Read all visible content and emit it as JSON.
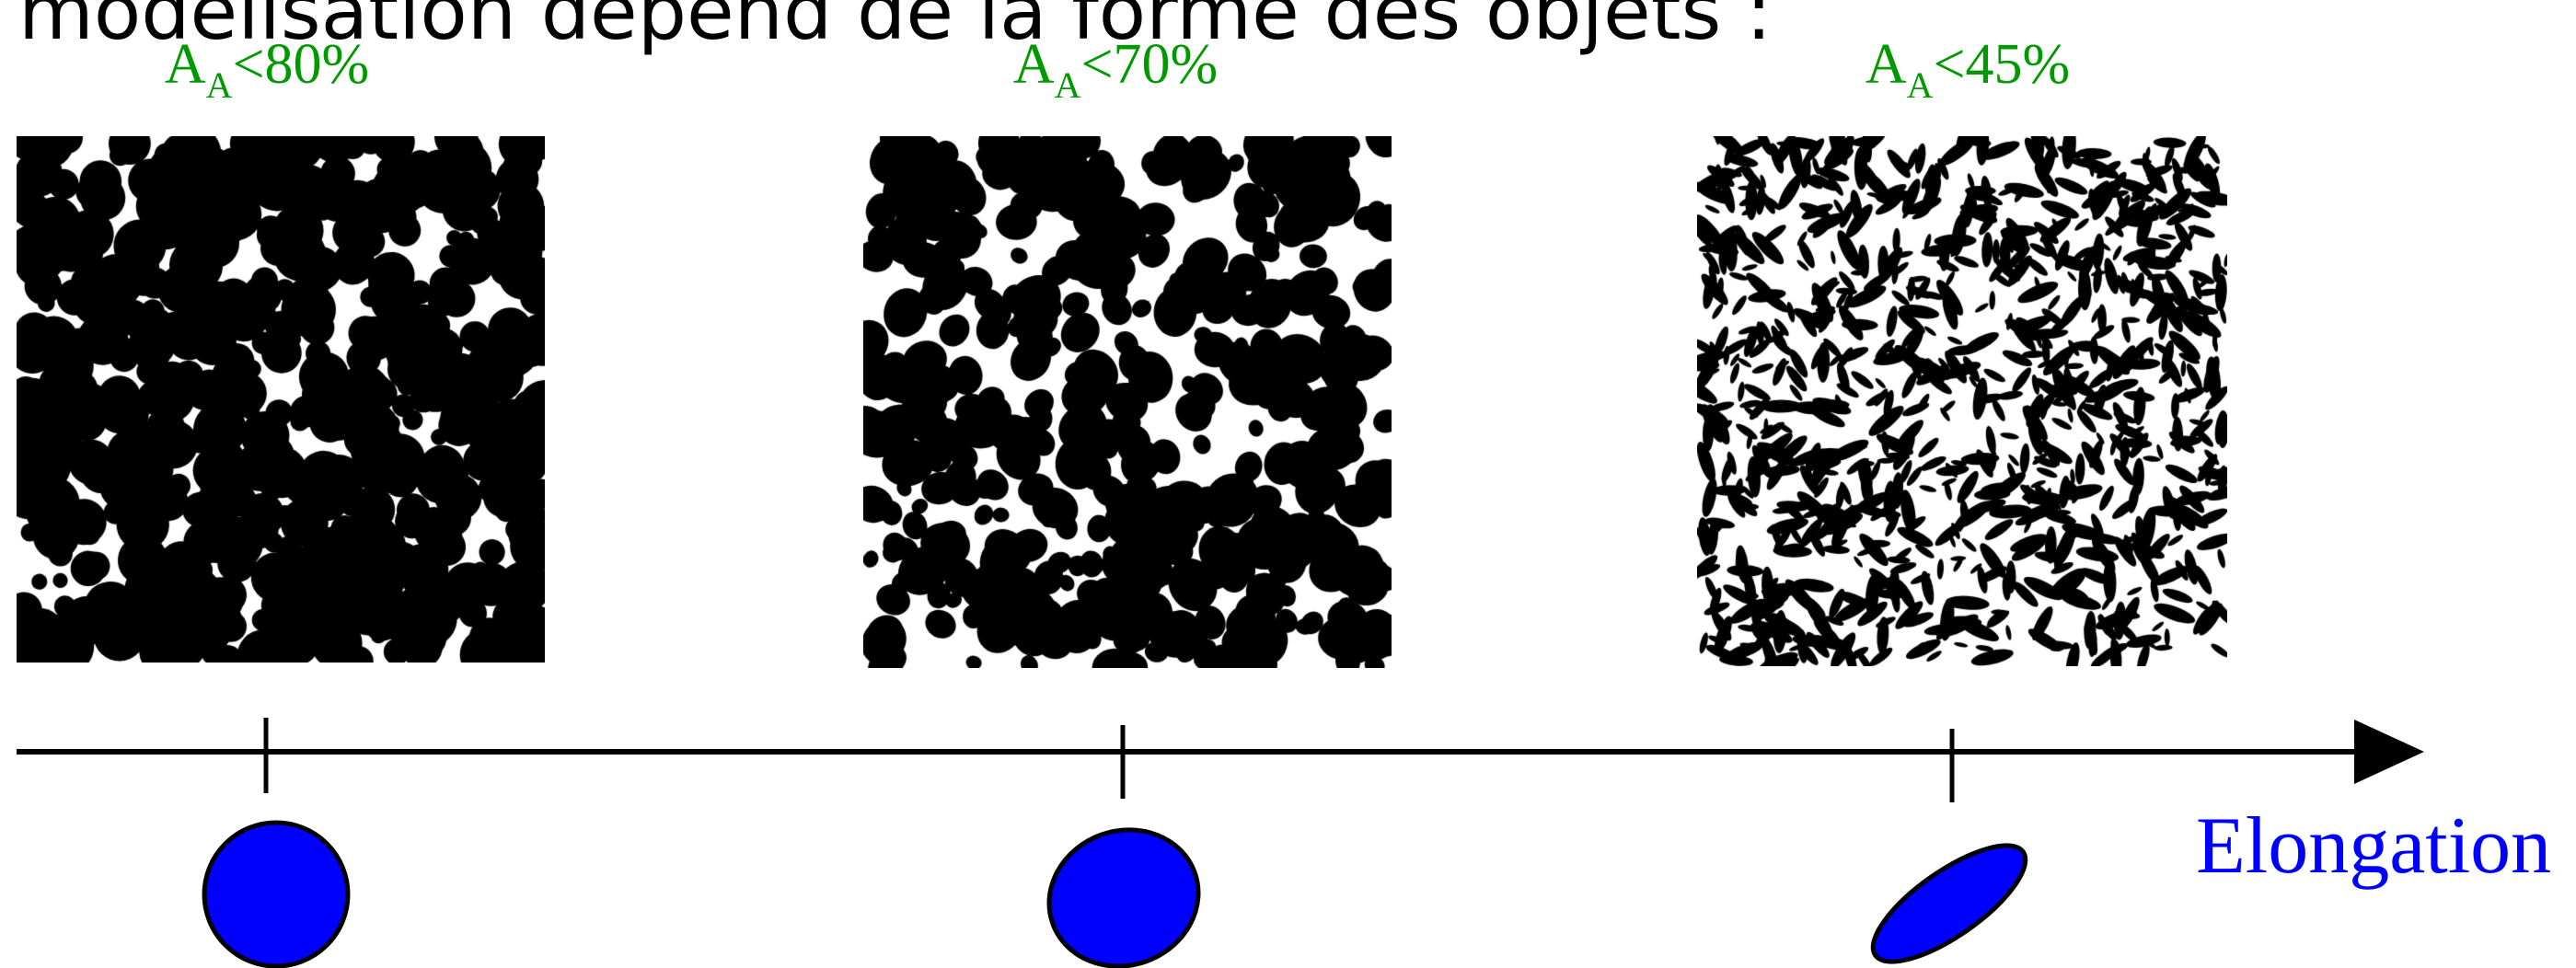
{
  "heading": {
    "text": "modélisation dépend de la forme des objets",
    "superscript": "",
    "trailing": " :"
  },
  "samples": [
    {
      "symbol": "A",
      "subscript": "A",
      "relation": "<80%",
      "elongation": 1.0,
      "tilt_deg": 0
    },
    {
      "symbol": "A",
      "subscript": "A",
      "relation": "<70%",
      "elongation": 1.2,
      "tilt_deg": -18
    },
    {
      "symbol": "A",
      "subscript": "A",
      "relation": "<45%",
      "elongation": 3.0,
      "tilt_deg": -35
    }
  ],
  "axis": {
    "label": "Elongation"
  },
  "colors": {
    "fraction_label": "#009900",
    "axis_label": "#0000ff",
    "particle_fill": "#0000ff",
    "outline": "#000000",
    "texture_foreground": "#000000",
    "texture_background": "#ffffff"
  }
}
